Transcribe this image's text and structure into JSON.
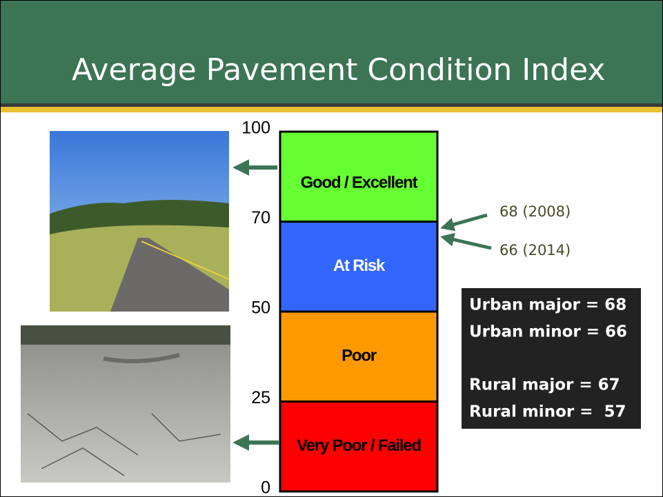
{
  "header": {
    "title": "Average Pavement Condition Index"
  },
  "scale": {
    "ticks": [
      100,
      70,
      50,
      25,
      0
    ],
    "bands": [
      {
        "label": "Good / Excellent",
        "color": "#66ff33",
        "text_color": "#000000"
      },
      {
        "label": "At Risk",
        "color": "#3366ff",
        "text_color": "#ffffff"
      },
      {
        "label": "Poor",
        "color": "#ff9900",
        "text_color": "#000000"
      },
      {
        "label": "Very Poor / Failed",
        "color": "#ff0000",
        "text_color": "#000000"
      }
    ]
  },
  "annotations": [
    "68 (2008)",
    "66 (2014)"
  ],
  "stats": [
    "Urban major = 68",
    "Urban minor = 66",
    "Rural major = 67",
    "Rural minor =  57"
  ]
}
